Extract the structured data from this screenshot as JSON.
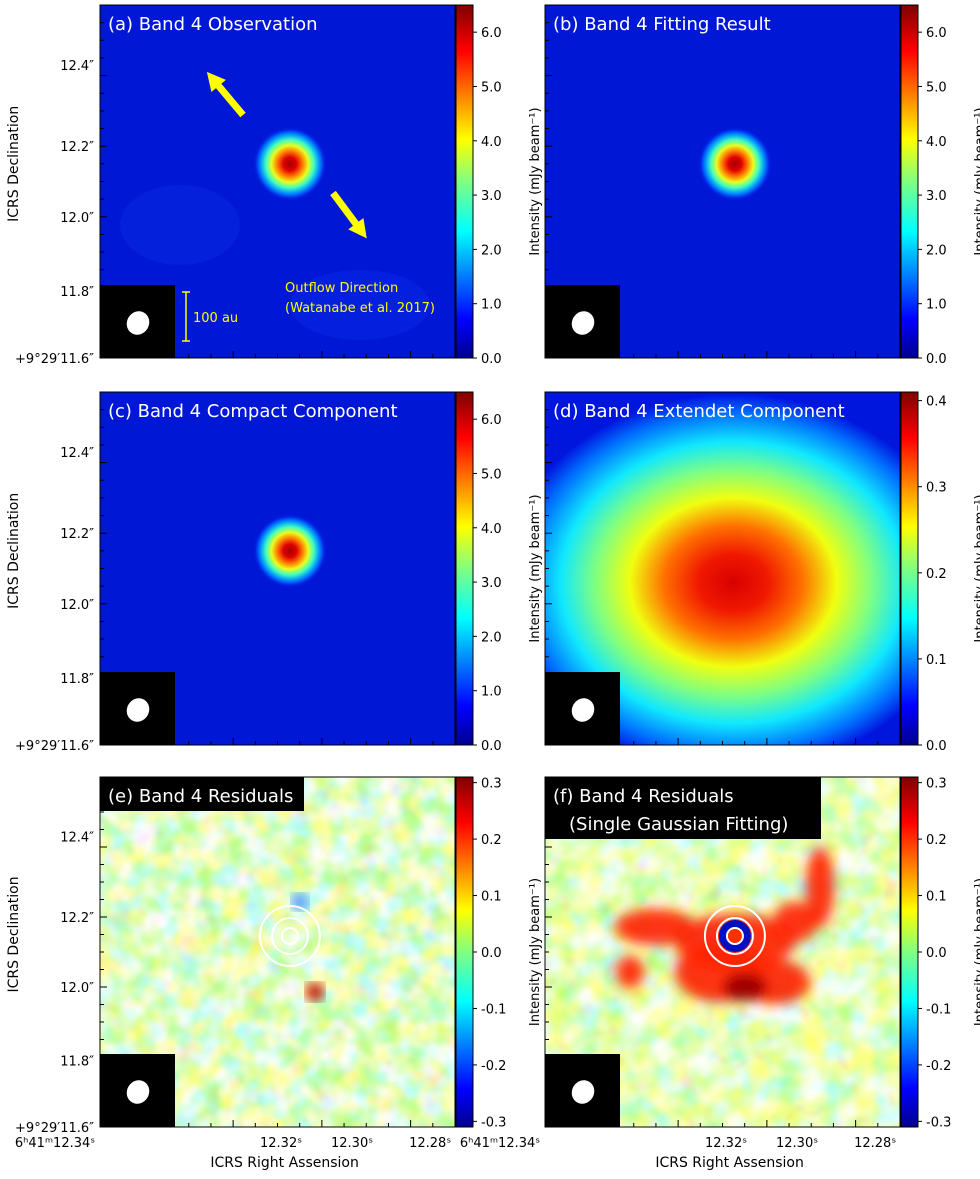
{
  "figure": {
    "ylabel": "ICRS Declination",
    "xlabel": "ICRS Right Assension",
    "colorbar_label": "Intensity (mJy beam⁻¹)",
    "ytick_labels": [
      "12.4″",
      "12.2″",
      "12.0″",
      "11.8″",
      "+9°29′11.6″"
    ],
    "xtick_labels": [
      "6ʰ41ᵐ12.34ˢ",
      "12.32ˢ",
      "12.30ˢ",
      "12.28ˢ"
    ]
  },
  "chart_data": [
    {
      "type": "heatmap",
      "title": "(a) Band 4 Observation",
      "colorbar": {
        "range": [
          0.0,
          6.5
        ],
        "ticks": [
          "0.0",
          "1.0",
          "2.0",
          "3.0",
          "4.0",
          "5.0",
          "6.0"
        ]
      },
      "map": "compact-source",
      "annotations": {
        "outflow_label": [
          "Outflow Direction",
          "(Watanabe et al. 2017)"
        ],
        "scalebar_label": "100 au",
        "arrow_color": "#ffff00"
      }
    },
    {
      "type": "heatmap",
      "title": "(b) Band 4 Fitting Result",
      "colorbar": {
        "range": [
          0.0,
          6.5
        ],
        "ticks": [
          "0.0",
          "1.0",
          "2.0",
          "3.0",
          "4.0",
          "5.0",
          "6.0"
        ]
      },
      "map": "compact-source"
    },
    {
      "type": "heatmap",
      "title": "(c) Band 4 Compact Component",
      "colorbar": {
        "range": [
          0.0,
          6.5
        ],
        "ticks": [
          "0.0",
          "1.0",
          "2.0",
          "3.0",
          "4.0",
          "5.0",
          "6.0"
        ]
      },
      "map": "compact-source"
    },
    {
      "type": "heatmap",
      "title": "(d) Band 4 Extendet Component",
      "colorbar": {
        "range": [
          0.0,
          0.41
        ],
        "ticks": [
          "0.0",
          "0.1",
          "0.2",
          "0.3",
          "0.4"
        ]
      },
      "map": "extended-elliptical-source"
    },
    {
      "type": "heatmap",
      "title": "(e) Band 4 Residuals",
      "colorbar": {
        "range": [
          -0.31,
          0.31
        ],
        "ticks": [
          "-0.3",
          "-0.2",
          "-0.1",
          "0.0",
          "0.1",
          "0.2",
          "0.3"
        ]
      },
      "map": "noise-residuals"
    },
    {
      "type": "heatmap",
      "title": "(f) Band 4 Residuals",
      "subtitle": "(Single Gaussian Fitting)",
      "colorbar": {
        "range": [
          -0.31,
          0.31
        ],
        "ticks": [
          "-0.3",
          "-0.2",
          "-0.1",
          "0.0",
          "0.1",
          "0.2",
          "0.3"
        ]
      },
      "map": "noise-residuals-with-extended-excess"
    }
  ]
}
